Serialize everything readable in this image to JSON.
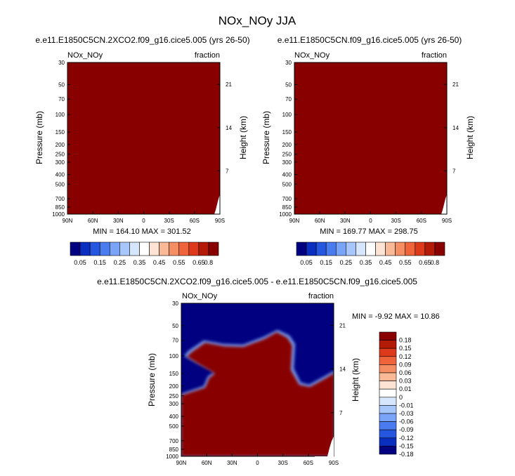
{
  "figure": {
    "title": "NOx_NOy JJA",
    "colors": {
      "dark_red": "#880000",
      "dark_blue": "#000080",
      "background": "#ffffff"
    }
  },
  "chart_data": [
    {
      "type": "heatmap",
      "title": "e.e11.E1850C5CN.2XCO2.f09_g16.cice5.005 (yrs 26-50)",
      "left_label": "NOx_NOy",
      "right_label": "fraction",
      "xlabel": "",
      "ylabel": "Pressure (mb)",
      "ylabel_right": "Height (km)",
      "x_ticks": [
        "90N",
        "60N",
        "30N",
        "0",
        "30S",
        "60S",
        "90S"
      ],
      "y_ticks": [
        "30",
        "50",
        "70",
        "100",
        "150",
        "200",
        "250",
        "300",
        "400",
        "500",
        "700",
        "850",
        "1000"
      ],
      "height_ticks": [
        "21",
        "14",
        "7"
      ],
      "ylim": [
        1000,
        30
      ],
      "stats": "MIN = 164.10   MAX = 301.52",
      "colorbar": {
        "labels": [
          "0.05",
          "0.15",
          "0.25",
          "0.35",
          "0.45",
          "0.55",
          "0.65",
          "0.8"
        ],
        "colors": [
          "#000080",
          "#0a2fc0",
          "#2456e0",
          "#4a7cf0",
          "#7aa4f8",
          "#a6c6fc",
          "#d6e6fc",
          "#ffffff",
          "#fde3d3",
          "#f9b996",
          "#f58e62",
          "#ef643a",
          "#dc3a1a",
          "#b41a08",
          "#880000"
        ]
      },
      "field": "uniform dark red (all values above colorbar maximum)"
    },
    {
      "type": "heatmap",
      "title": "e.e11.E1850C5CN.f09_g16.cice5.005 (yrs 26-50)",
      "left_label": "NOx_NOy",
      "right_label": "fraction",
      "xlabel": "",
      "ylabel": "Pressure (mb)",
      "ylabel_right": "Height (km)",
      "x_ticks": [
        "90N",
        "60N",
        "30N",
        "0",
        "30S",
        "60S",
        "90S"
      ],
      "y_ticks": [
        "30",
        "50",
        "70",
        "100",
        "150",
        "200",
        "250",
        "300",
        "400",
        "500",
        "700",
        "850",
        "1000"
      ],
      "height_ticks": [
        "21",
        "14",
        "7"
      ],
      "ylim": [
        1000,
        30
      ],
      "stats": "MIN = 169.77   MAX = 298.75",
      "colorbar": {
        "labels": [
          "0.05",
          "0.15",
          "0.25",
          "0.35",
          "0.45",
          "0.55",
          "0.65",
          "0.8"
        ],
        "colors": [
          "#000080",
          "#0a2fc0",
          "#2456e0",
          "#4a7cf0",
          "#7aa4f8",
          "#a6c6fc",
          "#d6e6fc",
          "#ffffff",
          "#fde3d3",
          "#f9b996",
          "#f58e62",
          "#ef643a",
          "#dc3a1a",
          "#b41a08",
          "#880000"
        ]
      },
      "field": "uniform dark red (all values above colorbar maximum)"
    },
    {
      "type": "heatmap",
      "title": "e.e11.E1850C5CN.2XCO2.f09_g16.cice5.005 - e.e11.E1850C5CN.f09_g16.cice5.005",
      "left_label": "NOx_NOy",
      "right_label": "fraction",
      "xlabel": "",
      "ylabel": "Pressure (mb)",
      "ylabel_right": "Height (km)",
      "x_ticks": [
        "90N",
        "60N",
        "30N",
        "0",
        "30S",
        "60S",
        "90S"
      ],
      "y_ticks": [
        "30",
        "50",
        "70",
        "100",
        "150",
        "200",
        "250",
        "300",
        "400",
        "500",
        "700",
        "850",
        "1000"
      ],
      "height_ticks": [
        "21",
        "14",
        "7"
      ],
      "ylim": [
        1000,
        30
      ],
      "stats": "MIN =  -9.92   MAX =  10.86",
      "colorbar": {
        "labels": [
          "0.18",
          "0.15",
          "0.12",
          "0.09",
          "0.06",
          "0.03",
          "0.01",
          "0",
          "-0.01",
          "-0.03",
          "-0.06",
          "-0.09",
          "-0.12",
          "-0.15",
          "-0.18"
        ],
        "colors": [
          "#880000",
          "#b41a08",
          "#dc3a1a",
          "#ef643a",
          "#f58e62",
          "#f9b996",
          "#fde3d3",
          "#ffffff",
          "#d6e6fc",
          "#a6c6fc",
          "#7aa4f8",
          "#4a7cf0",
          "#2456e0",
          "#0a2fc0",
          "#000080"
        ]
      },
      "field": "dark blue upper atmosphere, dark red troposphere with tongue near 100-150 mb"
    }
  ]
}
